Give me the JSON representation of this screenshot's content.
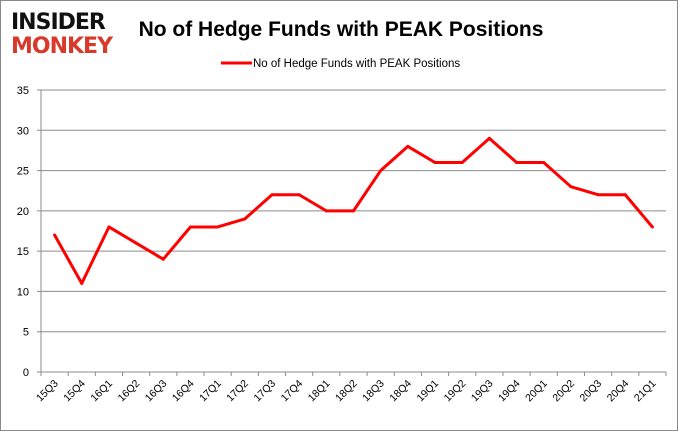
{
  "logo": {
    "line1": "INSIDER",
    "line2": "MONKEY"
  },
  "chart_data": {
    "type": "line",
    "title": "No of Hedge Funds with PEAK Positions",
    "categories": [
      "15Q3",
      "15Q4",
      "16Q1",
      "16Q2",
      "16Q3",
      "16Q4",
      "17Q1",
      "17Q2",
      "17Q3",
      "17Q4",
      "18Q1",
      "18Q2",
      "18Q3",
      "18Q4",
      "19Q1",
      "19Q2",
      "19Q3",
      "19Q4",
      "20Q1",
      "20Q2",
      "20Q3",
      "20Q4",
      "21Q1"
    ],
    "series": [
      {
        "name": "No of Hedge Funds with PEAK Positions",
        "color": "#ff0000",
        "values": [
          17,
          11,
          18,
          16,
          14,
          18,
          18,
          19,
          22,
          22,
          20,
          20,
          25,
          28,
          26,
          26,
          29,
          26,
          26,
          23,
          22,
          22,
          18
        ]
      }
    ],
    "ylim": [
      0,
      35
    ],
    "yticks": [
      0,
      5,
      10,
      15,
      20,
      25,
      30,
      35
    ],
    "grid": true,
    "legend": "top-center",
    "xlabel": "",
    "ylabel": ""
  }
}
